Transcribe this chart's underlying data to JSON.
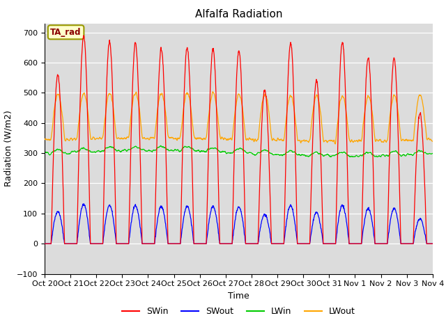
{
  "title": "Alfalfa Radiation",
  "ylabel": "Radiation (W/m2)",
  "xlabel": "Time",
  "ylim": [
    -100,
    730
  ],
  "yticks": [
    -100,
    0,
    100,
    200,
    300,
    400,
    500,
    600,
    700
  ],
  "xtick_labels": [
    "Oct 20",
    "Oct 21",
    "Oct 22",
    "Oct 23",
    "Oct 24",
    "Oct 25",
    "Oct 26",
    "Oct 27",
    "Oct 28",
    "Oct 29",
    "Oct 30",
    "Oct 31",
    "Nov 1",
    "Nov 2",
    "Nov 3",
    "Nov 4"
  ],
  "legend_labels": [
    "SWin",
    "SWout",
    "LWin",
    "LWout"
  ],
  "legend_colors": [
    "red",
    "blue",
    "green",
    "orange"
  ],
  "annotation_text": "TA_rad",
  "bg_color": "#dcdcdc",
  "n_days": 15,
  "dt": 0.25,
  "SWin_peaks": [
    560,
    690,
    670,
    665,
    645,
    650,
    645,
    640,
    510,
    665,
    540,
    670,
    615,
    615,
    430
  ],
  "day_start": 6.0,
  "day_end": 18.5,
  "lwin_base": 300,
  "lwout_base": 345,
  "lwout_day_peak": 150
}
